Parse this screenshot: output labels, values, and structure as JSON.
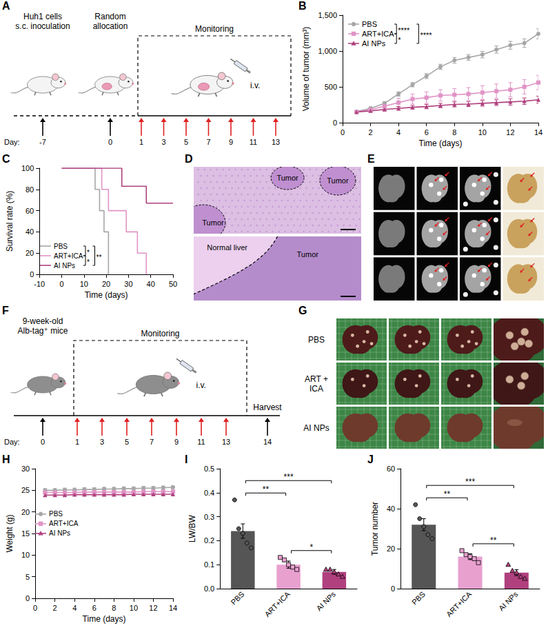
{
  "chart_data": [
    {
      "panel": "B",
      "type": "line",
      "x": [
        1,
        2,
        3,
        4,
        5,
        6,
        7,
        8,
        9,
        10,
        11,
        12,
        13,
        14
      ],
      "xlim": [
        0,
        14
      ],
      "xticks": [
        0,
        2,
        4,
        6,
        8,
        10,
        12,
        14
      ],
      "ylim": [
        0,
        1500
      ],
      "yticks": [
        0,
        500,
        {
          "value": 1000,
          "label": "1,000"
        },
        {
          "value": 1500,
          "label": "1,500"
        }
      ],
      "x_label": "Time (days)",
      "y_label": "Volume of tumor (mm³)",
      "grid": false,
      "legend": "top-left",
      "series": [
        {
          "name": "PBS",
          "color": "#a6a6a6",
          "marker": "circle",
          "values": [
            155,
            200,
            270,
            400,
            530,
            650,
            780,
            870,
            910,
            950,
            1020,
            1080,
            1110,
            1240
          ],
          "errors": [
            15,
            20,
            25,
            30,
            30,
            35,
            35,
            40,
            40,
            45,
            50,
            55,
            60,
            70
          ]
        },
        {
          "name": "ART+ICA",
          "color": "#e094c6",
          "marker": "square",
          "values": [
            150,
            180,
            230,
            280,
            330,
            350,
            380,
            390,
            400,
            420,
            440,
            460,
            500,
            560
          ],
          "errors": [
            15,
            25,
            40,
            60,
            70,
            80,
            80,
            85,
            90,
            95,
            100,
            100,
            100,
            100
          ]
        },
        {
          "name": "AI NPs",
          "color": "#b0407e",
          "marker": "triangle",
          "values": [
            150,
            165,
            185,
            200,
            215,
            225,
            240,
            255,
            260,
            270,
            280,
            290,
            300,
            320
          ],
          "errors": [
            10,
            15,
            20,
            25,
            25,
            30,
            30,
            35,
            35,
            40,
            40,
            45,
            45,
            50
          ]
        }
      ],
      "annotations": [
        {
          "text": "****",
          "between": [
            "PBS",
            "ART+ICA"
          ]
        },
        {
          "text": "*",
          "between": [
            "ART+ICA",
            "AI NPs"
          ]
        },
        {
          "text": "****",
          "between": [
            "PBS",
            "AI NPs"
          ]
        }
      ]
    },
    {
      "panel": "C",
      "type": "line",
      "line_style": "step",
      "xlim": [
        -10,
        50
      ],
      "xticks": [
        -10,
        0,
        10,
        20,
        30,
        40,
        50
      ],
      "ylim": [
        0,
        100
      ],
      "yticks": [
        0,
        20,
        40,
        60,
        80,
        100
      ],
      "x_label": "Time (days)",
      "y_label": "Survival rate (%)",
      "grid": false,
      "legend": "bottom-left",
      "series": [
        {
          "name": "PBS",
          "color": "#a6a6a6",
          "x": [
            0,
            15,
            17,
            19,
            21
          ],
          "values": [
            100,
            80,
            60,
            40,
            0
          ]
        },
        {
          "name": "ART+ICA",
          "color": "#e094c6",
          "x": [
            0,
            18,
            21,
            29,
            34,
            38
          ],
          "values": [
            100,
            80,
            60,
            40,
            20,
            0
          ]
        },
        {
          "name": "AI NPs",
          "color": "#b0407e",
          "x": [
            0,
            27,
            38,
            50
          ],
          "values": [
            100,
            83,
            67,
            67
          ]
        }
      ],
      "annotations": [
        {
          "text": "*",
          "between": [
            "PBS",
            "ART+ICA"
          ]
        },
        {
          "text": "*",
          "between": [
            "ART+ICA",
            "AI NPs"
          ]
        },
        {
          "text": "**",
          "between": [
            "PBS",
            "AI NPs"
          ]
        }
      ]
    },
    {
      "panel": "H",
      "type": "line",
      "x": [
        1,
        2,
        3,
        4,
        5,
        6,
        7,
        8,
        9,
        10,
        11,
        12,
        13,
        14
      ],
      "xlim": [
        0,
        14
      ],
      "xticks": [
        0,
        2,
        4,
        6,
        8,
        10,
        12,
        14
      ],
      "ylim": [
        0,
        30
      ],
      "yticks": [
        0,
        5,
        10,
        15,
        20,
        25,
        30
      ],
      "x_label": "Time (days)",
      "y_label": "Weight (g)",
      "grid": false,
      "legend": "left",
      "series": [
        {
          "name": "PBS",
          "color": "#a6a6a6",
          "marker": "circle",
          "values": [
            25.0,
            25.0,
            25.1,
            25.1,
            25.2,
            25.2,
            25.3,
            25.3,
            25.4,
            25.4,
            25.5,
            25.5,
            25.6,
            25.7
          ],
          "errors": [
            0.4,
            0.4,
            0.4,
            0.4,
            0.4,
            0.4,
            0.4,
            0.4,
            0.4,
            0.4,
            0.4,
            0.4,
            0.4,
            0.4
          ]
        },
        {
          "name": "ART+ICA",
          "color": "#e094c6",
          "marker": "square",
          "values": [
            24.5,
            24.5,
            24.5,
            24.5,
            24.6,
            24.6,
            24.6,
            24.6,
            24.6,
            24.6,
            24.7,
            24.7,
            24.7,
            24.7
          ],
          "errors": [
            0.3,
            0.3,
            0.3,
            0.3,
            0.3,
            0.3,
            0.3,
            0.3,
            0.3,
            0.3,
            0.3,
            0.3,
            0.3,
            0.3
          ]
        },
        {
          "name": "AI NPs",
          "color": "#b0407e",
          "marker": "triangle",
          "values": [
            23.9,
            23.9,
            23.9,
            24.0,
            24.0,
            24.0,
            24.0,
            24.0,
            24.0,
            24.1,
            24.1,
            24.1,
            24.1,
            24.1
          ],
          "errors": [
            0.3,
            0.3,
            0.3,
            0.3,
            0.3,
            0.3,
            0.3,
            0.3,
            0.3,
            0.3,
            0.3,
            0.3,
            0.3,
            0.3
          ]
        }
      ]
    },
    {
      "panel": "I",
      "type": "bar",
      "categories": [
        "PBS",
        "ART+ICA",
        "AI NPs"
      ],
      "values": [
        0.24,
        0.1,
        0.07
      ],
      "errors": [
        0.03,
        0.015,
        0.01
      ],
      "points": [
        [
          0.37,
          0.25,
          0.23,
          0.19,
          0.17
        ],
        [
          0.13,
          0.12,
          0.1,
          0.09,
          0.08
        ],
        [
          0.08,
          0.08,
          0.07,
          0.06,
          0.05
        ]
      ],
      "colors": [
        "#555555",
        "#e8a0cf",
        "#b0407e"
      ],
      "markers": [
        "circle",
        "square",
        "triangle"
      ],
      "ylim": [
        0,
        0.5
      ],
      "yticks": [
        {
          "value": 0,
          "label": "0.0"
        },
        0.1,
        0.2,
        0.3,
        0.4,
        0.5
      ],
      "y_label": "LW/BW",
      "grid": false,
      "annotations": [
        {
          "text": "**",
          "between": [
            "PBS",
            "ART+ICA"
          ]
        },
        {
          "text": "***",
          "between": [
            "PBS",
            "AI NPs"
          ]
        },
        {
          "text": "*",
          "between": [
            "ART+ICA",
            "AI NPs"
          ]
        }
      ]
    },
    {
      "panel": "J",
      "type": "bar",
      "categories": [
        "PBS",
        "ART+ICA",
        "AI NPs"
      ],
      "values": [
        32,
        16,
        8
      ],
      "errors": [
        3,
        1.5,
        1.5
      ],
      "points": [
        [
          42,
          35,
          31,
          27,
          25
        ],
        [
          19,
          17,
          16,
          15,
          13
        ],
        [
          12,
          9,
          8,
          6,
          5
        ]
      ],
      "colors": [
        "#555555",
        "#e8a0cf",
        "#b0407e"
      ],
      "markers": [
        "circle",
        "square",
        "triangle"
      ],
      "ylim": [
        0,
        60
      ],
      "yticks": [
        0,
        20,
        40,
        60
      ],
      "y_label": "Tumor number",
      "grid": false,
      "annotations": [
        {
          "text": "**",
          "between": [
            "PBS",
            "ART+ICA"
          ]
        },
        {
          "text": "***",
          "between": [
            "PBS",
            "AI NPs"
          ]
        },
        {
          "text": "**",
          "between": [
            "ART+ICA",
            "AI NPs"
          ]
        }
      ]
    }
  ],
  "diagrams": [
    {
      "panel": "A",
      "period": "Monitoring",
      "route": "i.v.",
      "timeline": {
        "label": "Day:",
        "events": [
          {
            "day": "-7",
            "injection": false,
            "text": [
              "Huh1 cells",
              "s.c. inoculation"
            ]
          },
          {
            "day": "0",
            "injection": false,
            "text": [
              "Random",
              "allocation"
            ]
          },
          {
            "day": "1",
            "injection": true
          },
          {
            "day": "3",
            "injection": true
          },
          {
            "day": "5",
            "injection": true
          },
          {
            "day": "7",
            "injection": true
          },
          {
            "day": "9",
            "injection": true
          },
          {
            "day": "11",
            "injection": true
          },
          {
            "day": "13",
            "injection": true
          }
        ]
      }
    },
    {
      "panel": "F",
      "period": "Monitoring",
      "route": "i.v.",
      "timeline": {
        "label": "Day:",
        "events": [
          {
            "day": "0",
            "injection": false,
            "text": [
              "9-week-old",
              "Alb-tag⁺ mice"
            ]
          },
          {
            "day": "1",
            "injection": true
          },
          {
            "day": "3",
            "injection": true
          },
          {
            "day": "5",
            "injection": true
          },
          {
            "day": "7",
            "injection": true
          },
          {
            "day": "9",
            "injection": true
          },
          {
            "day": "11",
            "injection": true
          },
          {
            "day": "13",
            "injection": true
          },
          {
            "day": "14",
            "injection": false,
            "text": [
              "Harvest"
            ]
          }
        ]
      }
    }
  ],
  "images": [
    {
      "panel": "D",
      "labels": {
        "upper": [
          "Tumor",
          "Tumor",
          "Tumor"
        ],
        "lower": [
          "Normal liver",
          "Tumor"
        ]
      }
    },
    {
      "panel": "E"
    },
    {
      "panel": "G",
      "rows": [
        "PBS",
        "ART + ICA",
        "AI NPs"
      ]
    }
  ]
}
